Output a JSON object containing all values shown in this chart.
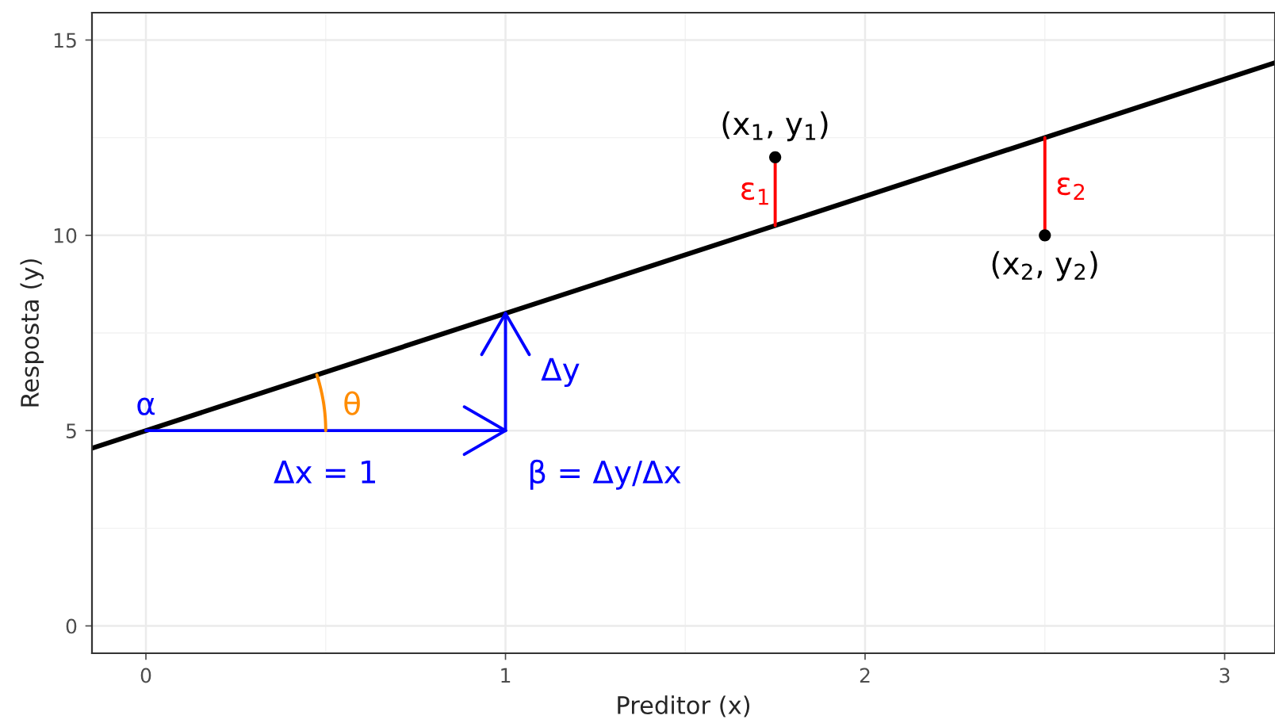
{
  "chart_data": {
    "type": "line",
    "xlabel": "Preditor (x)",
    "ylabel": "Resposta (y)",
    "xlim": [
      -0.15,
      3.14
    ],
    "ylim": [
      -0.7,
      15.7
    ],
    "xticks": [
      0,
      1,
      2,
      3
    ],
    "yticks": [
      0,
      5,
      10,
      15
    ],
    "grid": true,
    "series": [
      {
        "color": "#000000",
        "x": [
          -0.15,
          3.14
        ],
        "values": [
          4.55,
          14.42
        ]
      },
      {
        "color": "#ff0000",
        "x": [
          1.75,
          1.75
        ],
        "values": [
          10.25,
          12
        ]
      },
      {
        "color": "#ff0000",
        "x": [
          2.5,
          2.5
        ],
        "values": [
          12.5,
          10
        ]
      },
      {
        "color": "#0000ff",
        "x": [
          0,
          1
        ],
        "values": [
          5,
          5
        ]
      },
      {
        "color": "#0000ff",
        "x": [
          1,
          1
        ],
        "values": [
          5,
          8
        ]
      },
      {
        "type": "scatter",
        "color": "#000000",
        "x": [
          1.75,
          2.5
        ],
        "values": [
          12,
          10
        ]
      }
    ],
    "annotations": [
      "α",
      "θ",
      "Δy",
      "Δx = 1",
      "β = Δy/Δx",
      "(x$_{1}$, y$_{1}$)",
      "ε$_{1}$",
      "ε$_{2}$",
      "(x$_{2}$, y$_{2}$)"
    ]
  }
}
